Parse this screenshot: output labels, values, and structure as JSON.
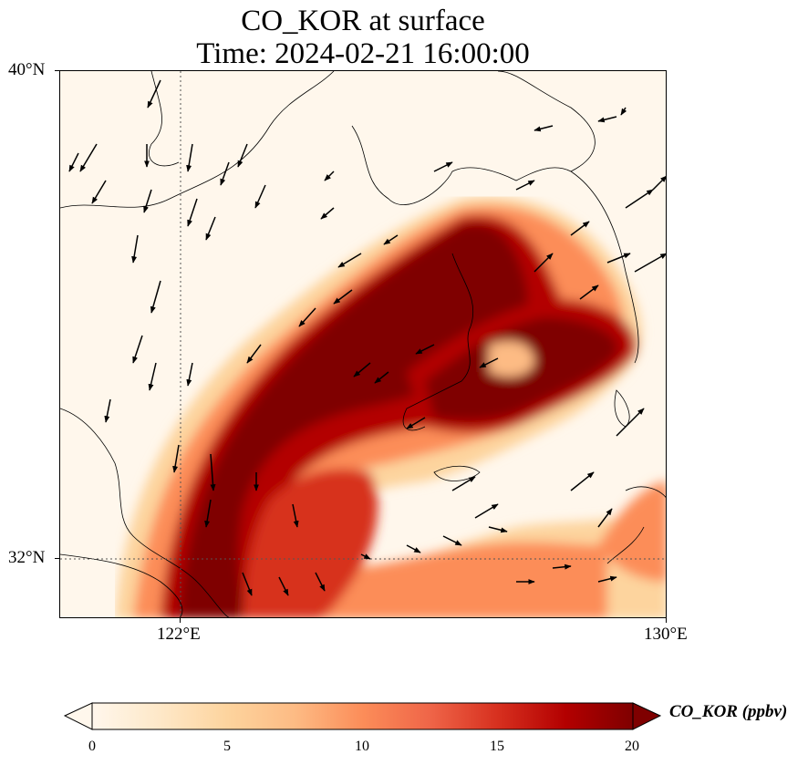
{
  "title": {
    "line1": "CO_KOR at surface",
    "line2": "Time: 2024-02-21 16:00:00"
  },
  "axes": {
    "lat_labels": [
      "40°N",
      "32°N"
    ],
    "lon_labels": [
      "122°E",
      "130°E"
    ],
    "lat_range": [
      31.0,
      40.0
    ],
    "lon_range": [
      120.0,
      130.0
    ],
    "gridlines": "dotted at 32°N and 122°E"
  },
  "colorbar": {
    "label": "CO_KOR (ppbv)",
    "ticks": [
      "0",
      "5",
      "10",
      "15",
      "20"
    ],
    "range": [
      0,
      20
    ],
    "extend": "both",
    "colormap": "OrRd",
    "colors": [
      "#fff7ec",
      "#fee8c8",
      "#fdd49e",
      "#fdbb84",
      "#fc8d59",
      "#ef6548",
      "#d7301f",
      "#b30000",
      "#7f0000"
    ]
  },
  "map": {
    "variable": "CO_KOR",
    "level": "surface",
    "overlay": "wind vectors (arrows)",
    "background_color": "#fff7ec",
    "plume_max_color": "#7f0000"
  }
}
